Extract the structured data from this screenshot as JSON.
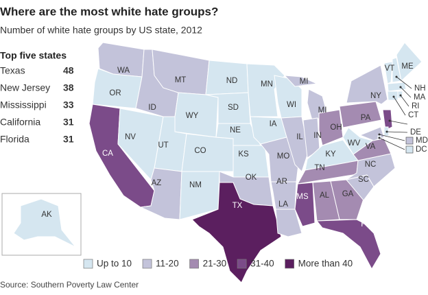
{
  "title": "Where are the most white hate groups?",
  "subtitle": "Number of white hate groups by US state, 2012",
  "top_five": {
    "heading": "Top five states",
    "rows": [
      {
        "state": "Texas",
        "count": 48
      },
      {
        "state": "New Jersey",
        "count": 38
      },
      {
        "state": "Mississippi",
        "count": 33
      },
      {
        "state": "California",
        "count": 31
      },
      {
        "state": "Florida",
        "count": 31
      }
    ]
  },
  "legend": [
    {
      "label": "Up to 10",
      "color": "#d5e6f0"
    },
    {
      "label": "11-20",
      "color": "#c3c3da"
    },
    {
      "label": "21-30",
      "color": "#a48bb1"
    },
    {
      "label": "31-40",
      "color": "#7b4b89"
    },
    {
      "label": "More than 40",
      "color": "#5b1f5f"
    }
  ],
  "states": [
    {
      "label": "WA",
      "category": "11-20"
    },
    {
      "label": "OR",
      "category": "Up to 10"
    },
    {
      "label": "CA",
      "category": "31-40"
    },
    {
      "label": "NV",
      "category": "Up to 10"
    },
    {
      "label": "ID",
      "category": "11-20"
    },
    {
      "label": "MT",
      "category": "11-20"
    },
    {
      "label": "WY",
      "category": "Up to 10"
    },
    {
      "label": "UT",
      "category": "Up to 10"
    },
    {
      "label": "AZ",
      "category": "11-20"
    },
    {
      "label": "CO",
      "category": "Up to 10"
    },
    {
      "label": "NM",
      "category": "Up to 10"
    },
    {
      "label": "ND",
      "category": "Up to 10"
    },
    {
      "label": "SD",
      "category": "Up to 10"
    },
    {
      "label": "NE",
      "category": "Up to 10"
    },
    {
      "label": "KS",
      "category": "Up to 10"
    },
    {
      "label": "OK",
      "category": "11-20"
    },
    {
      "label": "TX",
      "category": "More than 40"
    },
    {
      "label": "MN",
      "category": "Up to 10"
    },
    {
      "label": "IA",
      "category": "Up to 10"
    },
    {
      "label": "MO",
      "category": "11-20"
    },
    {
      "label": "AR",
      "category": "11-20"
    },
    {
      "label": "LA",
      "category": "11-20"
    },
    {
      "label": "WI",
      "category": "Up to 10"
    },
    {
      "label": "MI",
      "category": "11-20"
    },
    {
      "label": "MI",
      "category": "11-20"
    },
    {
      "label": "IL",
      "category": "11-20"
    },
    {
      "label": "IN",
      "category": "11-20"
    },
    {
      "label": "OH",
      "category": "21-30"
    },
    {
      "label": "KY",
      "category": "Up to 10"
    },
    {
      "label": "TN",
      "category": "21-30"
    },
    {
      "label": "MS",
      "category": "31-40"
    },
    {
      "label": "AL",
      "category": "21-30"
    },
    {
      "label": "GA",
      "category": "21-30"
    },
    {
      "label": "FL",
      "category": "31-40"
    },
    {
      "label": "SC",
      "category": "11-20"
    },
    {
      "label": "NC",
      "category": "11-20"
    },
    {
      "label": "VA",
      "category": "21-30"
    },
    {
      "label": "WV",
      "category": "Up to 10"
    },
    {
      "label": "PA",
      "category": "21-30"
    },
    {
      "label": "NY",
      "category": "11-20"
    },
    {
      "label": "VT",
      "category": "Up to 10"
    },
    {
      "label": "ME",
      "category": "Up to 10"
    },
    {
      "label": "NH",
      "category": "Up to 10"
    },
    {
      "label": "MA",
      "category": "Up to 10"
    },
    {
      "label": "RI",
      "category": "Up to 10"
    },
    {
      "label": "CT",
      "category": "Up to 10"
    },
    {
      "label": "NJ",
      "category": "31-40"
    },
    {
      "label": "DE",
      "category": "Up to 10"
    },
    {
      "label": "MD",
      "category": "11-20"
    },
    {
      "label": "DC",
      "category": "Up to 10"
    },
    {
      "label": "AK",
      "category": "Up to 10"
    }
  ],
  "source": "Source: Southern Poverty Law Center"
}
